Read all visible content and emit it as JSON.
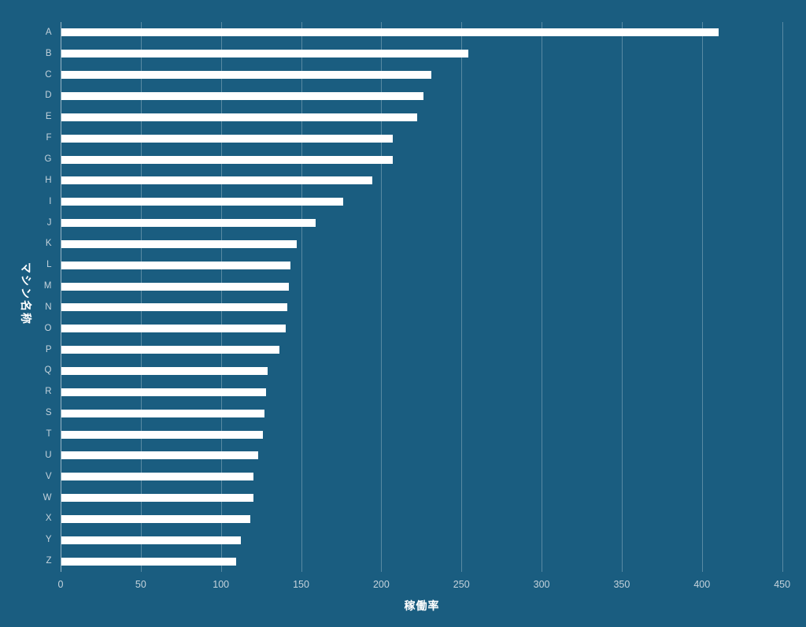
{
  "chart_data": {
    "type": "bar",
    "orientation": "horizontal",
    "title": "",
    "xlabel": "稼働率",
    "ylabel": "マシン名称",
    "categories": [
      "A",
      "B",
      "C",
      "D",
      "E",
      "F",
      "G",
      "H",
      "I",
      "J",
      "K",
      "L",
      "M",
      "N",
      "O",
      "P",
      "Q",
      "R",
      "S",
      "T",
      "U",
      "V",
      "W",
      "X",
      "Y",
      "Z"
    ],
    "values": [
      410,
      254,
      231,
      226,
      222,
      207,
      207,
      194,
      176,
      159,
      147,
      143,
      142,
      141,
      140,
      136,
      129,
      128,
      127,
      126,
      123,
      120,
      120,
      118,
      112,
      109
    ],
    "xticks": [
      0,
      50,
      100,
      150,
      200,
      250,
      300,
      350,
      400,
      450
    ],
    "xlim": [
      0,
      460
    ],
    "grid": true,
    "legend_position": "none",
    "colors": {
      "background": "#1a5d80",
      "bar": "#ffffff",
      "gridline": "rgba(255,255,255,0.28)",
      "zeroline": "rgba(255,255,255,0.55)",
      "tick_label": "#c5d3dc",
      "axis_title": "#ffffff"
    }
  }
}
